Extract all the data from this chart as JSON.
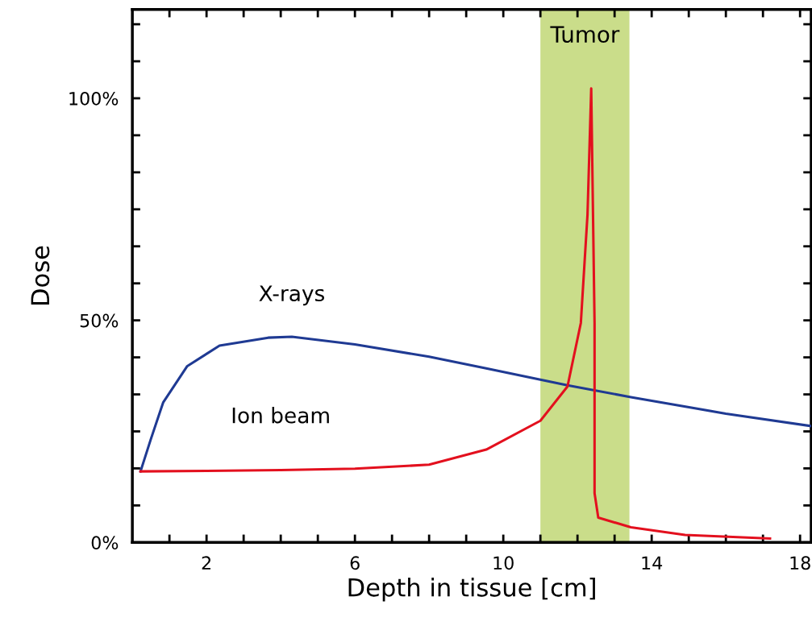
{
  "chart_data": {
    "type": "line",
    "xlabel": "Depth in tissue [cm]",
    "ylabel": "Dose",
    "xlim": [
      0,
      18.3
    ],
    "ylim": [
      0,
      120
    ],
    "xticks": [
      {
        "value": 1,
        "label": null
      },
      2,
      {
        "value": 3,
        "label": null
      },
      {
        "value": 4,
        "label": null
      },
      {
        "value": 5,
        "label": null
      },
      6,
      {
        "value": 7,
        "label": null
      },
      {
        "value": 8,
        "label": null
      },
      {
        "value": 9,
        "label": null
      },
      10,
      {
        "value": 11,
        "label": null
      },
      {
        "value": 12,
        "label": null
      },
      {
        "value": 13,
        "label": null
      },
      14,
      {
        "value": 15,
        "label": null
      },
      {
        "value": 16,
        "label": null
      },
      {
        "value": 17,
        "label": null
      },
      18
    ],
    "yticks": [
      {
        "value": 0,
        "label": "0%"
      },
      {
        "value": 8.33,
        "label": null
      },
      {
        "value": 16.67,
        "label": null
      },
      {
        "value": 25,
        "label": null
      },
      {
        "value": 33.33,
        "label": null
      },
      {
        "value": 41.67,
        "label": null
      },
      {
        "value": 50,
        "label": "50%"
      },
      {
        "value": 58.33,
        "label": null
      },
      {
        "value": 66.67,
        "label": null
      },
      {
        "value": 75,
        "label": null
      },
      {
        "value": 83.33,
        "label": null
      },
      {
        "value": 91.67,
        "label": null
      },
      {
        "value": 100,
        "label": "100%"
      },
      {
        "value": 108.33,
        "label": null
      },
      {
        "value": 116.67,
        "label": null
      }
    ],
    "bands": [
      {
        "axis": "x",
        "from": 11.0,
        "to": 13.4,
        "label": "Tumor",
        "color": "#cadd8a"
      }
    ],
    "series": [
      {
        "name": "X-rays",
        "color": "#1f3a93",
        "x": [
          0.22,
          0.5,
          0.83,
          1.48,
          2.35,
          3.66,
          4.3,
          6.0,
          8.0,
          9.54,
          11.73,
          13.44,
          16.0,
          18.3
        ],
        "values": [
          16,
          23.3,
          31.5,
          39.7,
          44.3,
          46.1,
          46.3,
          44.6,
          41.8,
          39.2,
          35.4,
          32.7,
          29.0,
          26.2
        ]
      },
      {
        "name": "Ion beam",
        "color": "#e3101e",
        "x": [
          0.22,
          2.0,
          4.0,
          6.0,
          8.0,
          9.54,
          11.0,
          11.73,
          12.09,
          12.27,
          12.37,
          12.46,
          12.46,
          12.56,
          13.44,
          14.9,
          17.19
        ],
        "values": [
          16,
          16.1,
          16.3,
          16.6,
          17.5,
          20.9,
          27.4,
          35.1,
          49.4,
          73.8,
          102.2,
          49.4,
          11.1,
          5.6,
          3.4,
          1.7,
          0.9
        ]
      }
    ]
  }
}
